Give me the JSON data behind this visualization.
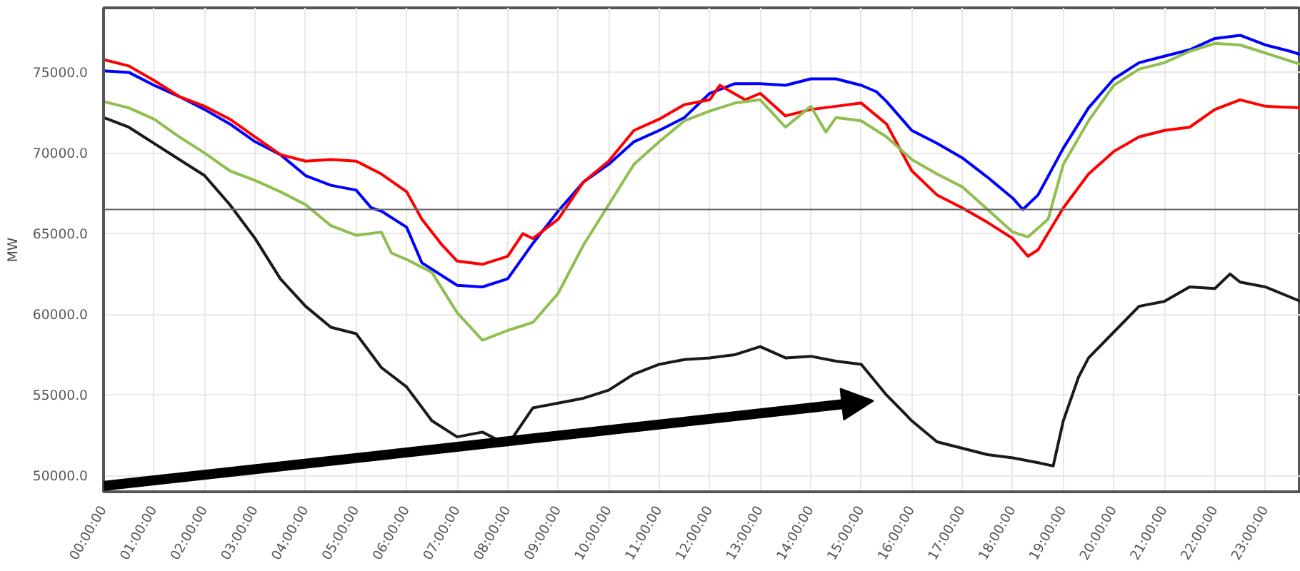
{
  "chart_data": {
    "type": "line",
    "ylabel": "MW",
    "xlim": [
      0,
      23.7
    ],
    "ylim": [
      49000,
      79000
    ],
    "xticks": [
      {
        "value": 0,
        "label": "00:00:00"
      },
      {
        "value": 1,
        "label": "01:00:00"
      },
      {
        "value": 2,
        "label": "02:00:00"
      },
      {
        "value": 3,
        "label": "03:00:00"
      },
      {
        "value": 4,
        "label": "04:00:00"
      },
      {
        "value": 5,
        "label": "05:00:00"
      },
      {
        "value": 6,
        "label": "06:00:00"
      },
      {
        "value": 7,
        "label": "07:00:00"
      },
      {
        "value": 8,
        "label": "08:00:00"
      },
      {
        "value": 9,
        "label": "09:00:00"
      },
      {
        "value": 10,
        "label": "10:00:00"
      },
      {
        "value": 11,
        "label": "11:00:00"
      },
      {
        "value": 12,
        "label": "12:00:00"
      },
      {
        "value": 13,
        "label": "13:00:00"
      },
      {
        "value": 14,
        "label": "14:00:00"
      },
      {
        "value": 15,
        "label": "15:00:00"
      },
      {
        "value": 16,
        "label": "16:00:00"
      },
      {
        "value": 17,
        "label": "17:00:00"
      },
      {
        "value": 18,
        "label": "18:00:00"
      },
      {
        "value": 19,
        "label": "19:00:00"
      },
      {
        "value": 20,
        "label": "20:00:00"
      },
      {
        "value": 21,
        "label": "21:00:00"
      },
      {
        "value": 22,
        "label": "22:00:00"
      },
      {
        "value": 23,
        "label": "23:00:00"
      }
    ],
    "yticks": [
      {
        "value": 50000,
        "label": "50000.0"
      },
      {
        "value": 55000,
        "label": "55000.0"
      },
      {
        "value": 60000,
        "label": "60000.0"
      },
      {
        "value": 65000,
        "label": "65000.0"
      },
      {
        "value": 70000,
        "label": "70000.0"
      },
      {
        "value": 75000,
        "label": "75000.0"
      }
    ],
    "grid": true,
    "marker": "none",
    "line_style": "solid",
    "ref_lines": [
      {
        "axis": "y",
        "value": 66500,
        "color": "#666666"
      }
    ],
    "series": [
      {
        "color": "#0000ff",
        "x": [
          0,
          0.5,
          1,
          1.5,
          2,
          2.5,
          3,
          3.5,
          4,
          4.5,
          5,
          5.3,
          5.5,
          6,
          6.3,
          7,
          7.5,
          8,
          8.5,
          9,
          9.5,
          10,
          10.5,
          11,
          11.5,
          12,
          12.5,
          13,
          13.5,
          14,
          14.5,
          15,
          15.3,
          15.5,
          16,
          16.5,
          17,
          17.5,
          18,
          18.2,
          18.5,
          19,
          19.5,
          20,
          20.5,
          21,
          21.5,
          22,
          22.5,
          23,
          23.5,
          23.7
        ],
        "values": [
          75100,
          75000,
          74200,
          73500,
          72700,
          71800,
          70700,
          69900,
          68600,
          68000,
          67700,
          66600,
          66400,
          65400,
          63200,
          61800,
          61700,
          62200,
          64400,
          66400,
          68200,
          69300,
          70700,
          71400,
          72200,
          73700,
          74300,
          74300,
          74200,
          74600,
          74600,
          74200,
          73800,
          73200,
          71400,
          70600,
          69700,
          68500,
          67200,
          66500,
          67400,
          70300,
          72800,
          74600,
          75600,
          76000,
          76400,
          77100,
          77300,
          76700,
          76300,
          76100
        ]
      },
      {
        "color": "#ff0000",
        "x": [
          0,
          0.5,
          1,
          1.5,
          2,
          2.5,
          3,
          3.5,
          4,
          4.5,
          5,
          5.5,
          6,
          6.3,
          6.7,
          7,
          7.5,
          8,
          8.3,
          8.5,
          9,
          9.5,
          10,
          10.5,
          11,
          11.5,
          12,
          12.2,
          12.7,
          13,
          13.5,
          14,
          14.5,
          15,
          15.5,
          16,
          16.5,
          17,
          17.5,
          18,
          18.3,
          18.5,
          19,
          19.5,
          20,
          20.5,
          21,
          21.5,
          22,
          22.5,
          23,
          23.7
        ],
        "values": [
          75800,
          75400,
          74500,
          73500,
          72900,
          72100,
          71000,
          69900,
          69500,
          69600,
          69500,
          68700,
          67600,
          65900,
          64300,
          63300,
          63100,
          63600,
          65000,
          64700,
          65900,
          68200,
          69500,
          71400,
          72100,
          73000,
          73300,
          74200,
          73300,
          73700,
          72300,
          72700,
          72900,
          73100,
          71800,
          68900,
          67400,
          66600,
          65700,
          64700,
          63600,
          64000,
          66600,
          68700,
          70100,
          71000,
          71400,
          71600,
          72700,
          73300,
          72900,
          72800
        ]
      },
      {
        "color": "#8fbf4f",
        "x": [
          0,
          0.5,
          1,
          1.5,
          2,
          2.5,
          3,
          3.5,
          4,
          4.5,
          5,
          5.5,
          5.7,
          6,
          6.5,
          7,
          7.5,
          8,
          8.5,
          9,
          9.5,
          10,
          10.5,
          11,
          11.5,
          12,
          12.5,
          13,
          13.5,
          14,
          14.3,
          14.5,
          15,
          15.5,
          16,
          16.5,
          17,
          17.5,
          18,
          18.3,
          18.7,
          19,
          19.5,
          20,
          20.5,
          21,
          21.5,
          22,
          22.5,
          23,
          23.7
        ],
        "values": [
          73200,
          72800,
          72100,
          71000,
          70000,
          68900,
          68300,
          67600,
          66800,
          65500,
          64900,
          65100,
          63800,
          63400,
          62600,
          60100,
          58400,
          59000,
          59500,
          61300,
          64300,
          66800,
          69300,
          70700,
          72000,
          72600,
          73100,
          73300,
          71600,
          72900,
          71300,
          72200,
          72000,
          71000,
          69600,
          68700,
          67900,
          66500,
          65100,
          64800,
          65900,
          69300,
          72000,
          74200,
          75200,
          75600,
          76300,
          76800,
          76700,
          76200,
          75500
        ]
      },
      {
        "color": "#1a1a1a",
        "x": [
          0,
          0.5,
          1,
          1.5,
          2,
          2.5,
          3,
          3.5,
          4,
          4.5,
          5,
          5.5,
          6,
          6.5,
          7,
          7.5,
          8,
          8.5,
          9,
          9.5,
          10,
          10.5,
          11,
          11.5,
          12,
          12.5,
          13,
          13.5,
          14,
          14.5,
          15,
          15.5,
          16,
          16.5,
          17,
          17.5,
          18,
          18.5,
          18.8,
          19,
          19.3,
          19.5,
          20,
          20.5,
          21,
          21.5,
          22,
          22.3,
          22.5,
          23,
          23.7
        ],
        "values": [
          72200,
          71600,
          70600,
          69600,
          68600,
          66800,
          64700,
          62200,
          60500,
          59200,
          58800,
          56700,
          55500,
          53400,
          52400,
          52700,
          51900,
          54200,
          54500,
          54800,
          55300,
          56300,
          56900,
          57200,
          57300,
          57500,
          58000,
          57300,
          57400,
          57100,
          56900,
          55000,
          53400,
          52100,
          51700,
          51300,
          51100,
          50800,
          50600,
          53400,
          56100,
          57300,
          58900,
          60500,
          60800,
          61700,
          61600,
          62500,
          62000,
          61700,
          60800
        ]
      }
    ]
  }
}
